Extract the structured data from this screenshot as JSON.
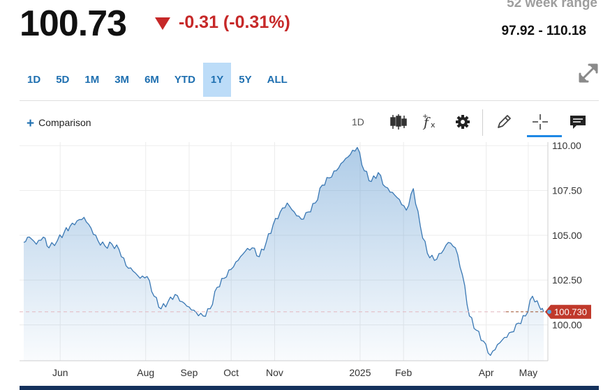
{
  "quote": {
    "price": "100.73",
    "change": "-0.31 (-0.31%)",
    "range_title": "52 week range",
    "range_value": "97.92 - 110.18",
    "down_color": "#c62828"
  },
  "periods": [
    "1D",
    "5D",
    "1M",
    "3M",
    "6M",
    "YTD",
    "1Y",
    "5Y",
    "ALL"
  ],
  "active_period": "1Y",
  "toolbar": {
    "comparison_label": "Comparison",
    "interval_label": "1D",
    "icons": [
      "candlestick-icon",
      "function-icon",
      "gear-icon",
      "pencil-icon",
      "crosshair-icon",
      "chat-icon"
    ]
  },
  "chart_data": {
    "type": "area",
    "series": [
      {
        "x": [
          "2024-05-06",
          "2024-05-10",
          "2024-05-15",
          "2024-05-20",
          "2024-05-24",
          "2024-05-30",
          "2024-06-04",
          "2024-06-08",
          "2024-06-13",
          "2024-06-18",
          "2024-06-23",
          "2024-06-28",
          "2024-07-03",
          "2024-07-08",
          "2024-07-13",
          "2024-07-18",
          "2024-07-23",
          "2024-07-28",
          "2024-08-02",
          "2024-08-07",
          "2024-08-12",
          "2024-08-17",
          "2024-08-22",
          "2024-08-27",
          "2024-09-01",
          "2024-09-06",
          "2024-09-11",
          "2024-09-16",
          "2024-09-21",
          "2024-09-26",
          "2024-10-01",
          "2024-10-06",
          "2024-10-11",
          "2024-10-16",
          "2024-10-21",
          "2024-10-26",
          "2024-10-31",
          "2024-11-05",
          "2024-11-10",
          "2024-11-15",
          "2024-11-20",
          "2024-11-25",
          "2024-11-30",
          "2024-12-05",
          "2024-12-10",
          "2024-12-15",
          "2024-12-20",
          "2024-12-25",
          "2024-12-30",
          "2025-01-04",
          "2025-01-09",
          "2025-01-14",
          "2025-01-19",
          "2025-01-24",
          "2025-01-29",
          "2025-02-03",
          "2025-02-08",
          "2025-02-13",
          "2025-02-18",
          "2025-02-23",
          "2025-02-28",
          "2025-03-05",
          "2025-03-10",
          "2025-03-15",
          "2025-03-20",
          "2025-03-25",
          "2025-03-30",
          "2025-04-04",
          "2025-04-09",
          "2025-04-14",
          "2025-04-19",
          "2025-04-24",
          "2025-04-29",
          "2025-05-04",
          "2025-05-09",
          "2025-05-12"
        ],
        "y": [
          104.6,
          104.9,
          104.5,
          104.9,
          104.3,
          104.7,
          105.2,
          105.5,
          105.8,
          106.0,
          105.4,
          104.7,
          104.4,
          104.5,
          104.2,
          103.3,
          103.0,
          102.6,
          102.7,
          101.6,
          100.9,
          101.3,
          101.7,
          101.3,
          101.0,
          100.7,
          100.5,
          100.9,
          102.1,
          102.6,
          103.1,
          103.6,
          104.1,
          104.3,
          103.8,
          104.6,
          105.6,
          106.3,
          106.8,
          106.3,
          105.9,
          106.3,
          106.8,
          107.8,
          108.2,
          108.6,
          109.1,
          109.5,
          109.9,
          108.6,
          108.0,
          108.5,
          107.7,
          107.4,
          107.0,
          106.4,
          107.6,
          105.5,
          104.0,
          103.6,
          104.0,
          104.6,
          104.3,
          102.8,
          100.5,
          99.7,
          99.1,
          98.3,
          98.9,
          99.3,
          99.6,
          100.1,
          100.5,
          101.6,
          101.0,
          100.73
        ]
      }
    ],
    "x_ticks": [
      {
        "date": "2024-06-01",
        "label": "Jun"
      },
      {
        "date": "2024-08-01",
        "label": "Aug"
      },
      {
        "date": "2024-09-01",
        "label": "Sep"
      },
      {
        "date": "2024-10-01",
        "label": "Oct"
      },
      {
        "date": "2024-11-01",
        "label": "Nov"
      },
      {
        "date": "2025-01-01",
        "label": "2025"
      },
      {
        "date": "2025-02-01",
        "label": "Feb"
      },
      {
        "date": "2025-04-01",
        "label": "Apr"
      },
      {
        "date": "2025-05-01",
        "label": "May"
      }
    ],
    "y_ticks": [
      "100.00",
      "102.50",
      "105.00",
      "107.50",
      "110.00"
    ],
    "ylim": [
      98.0,
      110.2
    ],
    "xlim": [
      "2024-05-03",
      "2025-05-15"
    ],
    "last_value_label": "100.730",
    "last_value": 100.73,
    "line_color": "#3a78b4",
    "fill_color": "#4d8ecb",
    "last_label_color": "#c0392b",
    "grid": true
  }
}
